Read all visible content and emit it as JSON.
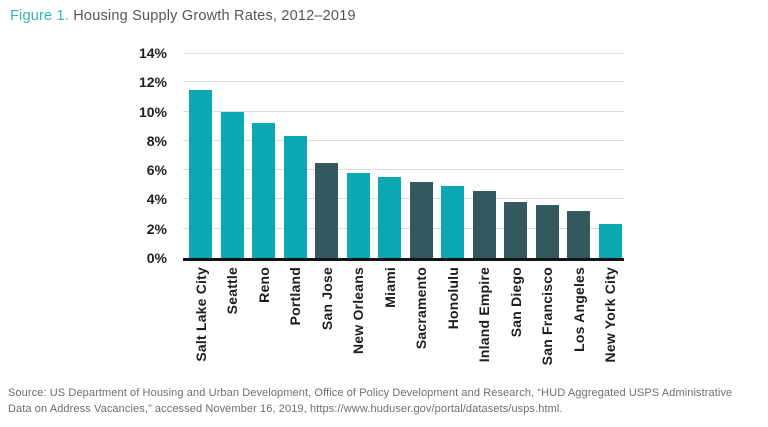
{
  "title": {
    "prefix": "Figure 1.",
    "rest": " Housing Supply Growth Rates, 2012–2019"
  },
  "chart_data": {
    "type": "bar",
    "title": "Figure 1. Housing Supply Growth Rates, 2012–2019",
    "categories": [
      "Salt Lake City",
      "Seattle",
      "Reno",
      "Portland",
      "San Jose",
      "New Orleans",
      "Miami",
      "Sacramento",
      "Honolulu",
      "Inland Empire",
      "San Diego",
      "San Francisco",
      "Los Angeles",
      "New York City"
    ],
    "values": [
      11.5,
      10.0,
      9.2,
      8.3,
      6.5,
      5.8,
      5.5,
      5.2,
      4.9,
      4.6,
      3.8,
      3.6,
      3.2,
      2.3
    ],
    "bar_colors": [
      "#0ba7b3",
      "#0ba7b3",
      "#0ba7b3",
      "#0ba7b3",
      "#33595f",
      "#0ba7b3",
      "#0ba7b3",
      "#33595f",
      "#0ba7b3",
      "#33595f",
      "#33595f",
      "#33595f",
      "#33595f",
      "#0ba7b3"
    ],
    "palette": {
      "teal": "#0ba7b3",
      "dark_slate": "#33595f",
      "gridline": "#dcdcdc",
      "axis": "#141414",
      "title_accent": "#35b4c2"
    },
    "xlabel": "",
    "ylabel": "",
    "ylim": [
      0,
      14
    ],
    "ytick_step": 2,
    "ytick_labels": [
      "0%",
      "2%",
      "4%",
      "6%",
      "8%",
      "10%",
      "12%",
      "14%"
    ],
    "grid": "horizontal",
    "legend": "none",
    "x_tick_rotation": 90
  },
  "source": {
    "lines": [
      "Source: US Department of Housing and Urban Development, Office of Policy Development and Research, “HUD Aggregated USPS Administrative",
      "Data on Address Vacancies,” accessed November 16, 2019, https://www.huduser.gov/portal/datasets/usps.html."
    ]
  }
}
